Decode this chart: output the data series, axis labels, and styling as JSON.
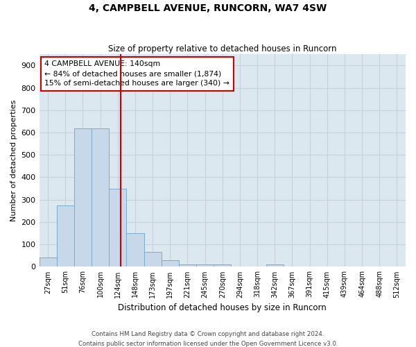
{
  "title": "4, CAMPBELL AVENUE, RUNCORN, WA7 4SW",
  "subtitle": "Size of property relative to detached houses in Runcorn",
  "xlabel": "Distribution of detached houses by size in Runcorn",
  "ylabel": "Number of detached properties",
  "bar_labels": [
    "27sqm",
    "51sqm",
    "76sqm",
    "100sqm",
    "124sqm",
    "148sqm",
    "173sqm",
    "197sqm",
    "221sqm",
    "245sqm",
    "270sqm",
    "294sqm",
    "318sqm",
    "342sqm",
    "367sqm",
    "391sqm",
    "415sqm",
    "439sqm",
    "464sqm",
    "488sqm",
    "512sqm"
  ],
  "bar_values": [
    42,
    275,
    620,
    620,
    350,
    150,
    65,
    30,
    12,
    10,
    10,
    0,
    0,
    10,
    0,
    0,
    0,
    0,
    0,
    0,
    0
  ],
  "bar_color": "#c8d8eb",
  "bar_edge_color": "#7aaacb",
  "ylim": [
    0,
    950
  ],
  "yticks": [
    0,
    100,
    200,
    300,
    400,
    500,
    600,
    700,
    800,
    900
  ],
  "vline_x": 4.16,
  "annotation_title": "4 CAMPBELL AVENUE: 140sqm",
  "annotation_line1": "← 84% of detached houses are smaller (1,874)",
  "annotation_line2": "15% of semi-detached houses are larger (340) →",
  "annotation_box_color": "#ffffff",
  "annotation_border_color": "#cc0000",
  "vline_color": "#cc0000",
  "grid_color": "#c8d0d8",
  "plot_bg_color": "#dce8f0",
  "fig_bg_color": "#ffffff",
  "footer_line1": "Contains HM Land Registry data © Crown copyright and database right 2024.",
  "footer_line2": "Contains public sector information licensed under the Open Government Licence v3.0."
}
